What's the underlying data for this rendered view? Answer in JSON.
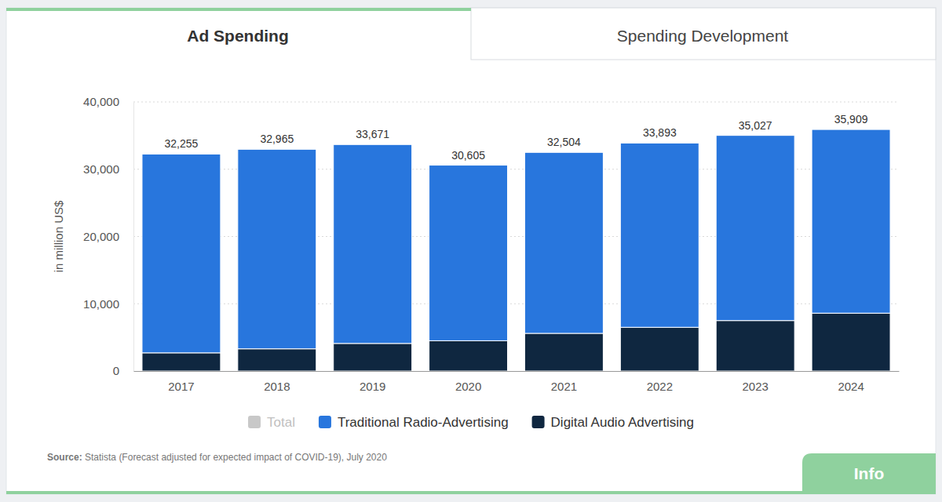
{
  "page": {
    "tabs": [
      "Ad Spending",
      "Spending Development"
    ],
    "source_label": "Source:",
    "source": "Statista (Forecast adjusted for expected impact of COVID-19), July 2020",
    "button": "Info"
  },
  "chart_data": {
    "type": "bar",
    "stacked": true,
    "ylabel": "in million US$",
    "categories": [
      "2017",
      "2018",
      "2019",
      "2020",
      "2021",
      "2022",
      "2023",
      "2024"
    ],
    "series": [
      {
        "name": "Total",
        "type": "text",
        "color": "#c8c8c8",
        "values": [
          32255,
          32965,
          33671,
          30605,
          32504,
          33893,
          35027,
          35909
        ],
        "value_labels": [
          "32,255",
          "32,965",
          "33,671",
          "30,605",
          "32,504",
          "33,893",
          "35,027",
          "35,909"
        ]
      },
      {
        "name": "Traditional Radio-Advertising",
        "color": "#2876dd",
        "values": [
          29555,
          29665,
          29571,
          26105,
          26904,
          27393,
          27527,
          27309
        ]
      },
      {
        "name": "Digital Audio Advertising",
        "color": "#0f2740",
        "values": [
          2700,
          3300,
          4100,
          4500,
          5600,
          6500,
          7500,
          8600
        ]
      }
    ],
    "ylim": [
      0,
      40000
    ],
    "yticks": [
      0,
      {
        "value": 10000,
        "label": "10,000"
      },
      {
        "value": 20000,
        "label": "20,000"
      },
      {
        "value": 30000,
        "label": "30,000"
      },
      {
        "value": 40000,
        "label": "40,000"
      }
    ],
    "grid": true,
    "legend": "bottom",
    "data_labels": true
  }
}
